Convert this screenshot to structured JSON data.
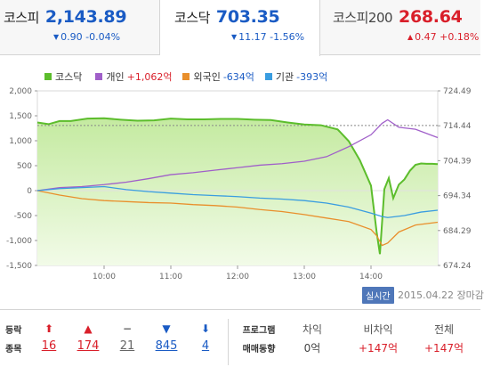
{
  "tabs": [
    {
      "name": "코스피",
      "value": "2,143.89",
      "change": "0.90 -0.04%",
      "direction": "down"
    },
    {
      "name": "코스닥",
      "value": "703.35",
      "change": "11.17 -1.56%",
      "direction": "down"
    },
    {
      "name": "코스피200",
      "value": "268.64",
      "change": "0.47 +0.18%",
      "direction": "up"
    }
  ],
  "legend": [
    {
      "label": "코스닥",
      "value": "",
      "color": "#5cbd2c"
    },
    {
      "label": "개인",
      "value": "+1,062억",
      "color": "#a05fc9",
      "direction": "up"
    },
    {
      "label": "외국인",
      "value": "-634억",
      "color": "#e98f2c",
      "direction": "down"
    },
    {
      "label": "기관",
      "value": "-393억",
      "color": "#3a9de0",
      "direction": "down"
    }
  ],
  "colors": {
    "kosdaq": "#5cbd2c",
    "individual": "#a05fc9",
    "foreign": "#e98f2c",
    "institution": "#3a9de0",
    "up": "#d91f2a",
    "down": "#1a5bc4"
  },
  "chart_data": {
    "type": "line",
    "x_ticks": [
      "10:00",
      "11:00",
      "12:00",
      "13:00",
      "14:00"
    ],
    "x_range": [
      "09:00",
      "15:00"
    ],
    "y_left_ticks": [
      "2,000",
      "1,500",
      "1,000",
      "500",
      "0",
      "-500",
      "-1,000",
      "-1,500"
    ],
    "y_left_range": [
      -1500,
      2000
    ],
    "y_right_ticks": [
      "724.49",
      "714.44",
      "704.39",
      "694.34",
      "684.29",
      "674.24"
    ],
    "y_right_range": [
      674.24,
      724.49
    ],
    "reference_line": 714.52,
    "series": [
      {
        "name": "코스닥",
        "axis": "right",
        "x": [
          "09:00",
          "09:10",
          "09:20",
          "09:30",
          "09:45",
          "10:00",
          "10:15",
          "10:30",
          "10:45",
          "11:00",
          "11:15",
          "11:30",
          "11:45",
          "12:00",
          "12:15",
          "12:30",
          "12:45",
          "13:00",
          "13:15",
          "13:30",
          "13:40",
          "13:50",
          "14:00",
          "14:05",
          "14:08",
          "14:12",
          "14:16",
          "14:20",
          "14:25",
          "14:30",
          "14:35",
          "14:40",
          "14:45",
          "14:50",
          "14:55",
          "15:00"
        ],
        "values": [
          715.4,
          714.9,
          715.8,
          715.8,
          716.5,
          716.6,
          716.2,
          715.9,
          716.0,
          716.5,
          716.3,
          716.3,
          716.4,
          716.4,
          716.2,
          716.1,
          715.4,
          714.8,
          714.6,
          713.4,
          710.0,
          704.5,
          697.2,
          684.0,
          677.5,
          696.2,
          699.4,
          693.6,
          697.5,
          699.0,
          701.5,
          703.2,
          703.6,
          703.5,
          703.5,
          703.4
        ]
      },
      {
        "name": "개인",
        "axis": "left",
        "x": [
          "09:00",
          "09:20",
          "09:40",
          "10:00",
          "10:20",
          "10:40",
          "11:00",
          "11:20",
          "11:40",
          "12:00",
          "12:20",
          "12:40",
          "13:00",
          "13:20",
          "13:40",
          "14:00",
          "14:10",
          "14:15",
          "14:25",
          "14:40",
          "15:00"
        ],
        "values": [
          0,
          60,
          80,
          120,
          170,
          240,
          320,
          360,
          410,
          460,
          510,
          540,
          590,
          680,
          880,
          1120,
          1350,
          1420,
          1270,
          1230,
          1062
        ]
      },
      {
        "name": "외국인",
        "axis": "left",
        "x": [
          "09:00",
          "09:20",
          "09:40",
          "10:00",
          "10:20",
          "10:40",
          "11:00",
          "11:20",
          "11:40",
          "12:00",
          "12:20",
          "12:40",
          "13:00",
          "13:20",
          "13:40",
          "14:00",
          "14:05",
          "14:10",
          "14:15",
          "14:25",
          "14:40",
          "15:00"
        ],
        "values": [
          0,
          -90,
          -160,
          -200,
          -220,
          -240,
          -250,
          -280,
          -300,
          -330,
          -380,
          -420,
          -480,
          -550,
          -620,
          -780,
          -900,
          -1100,
          -1050,
          -830,
          -690,
          -634
        ]
      },
      {
        "name": "기관",
        "axis": "left",
        "x": [
          "09:00",
          "09:20",
          "09:40",
          "10:00",
          "10:20",
          "10:40",
          "11:00",
          "11:20",
          "11:40",
          "12:00",
          "12:20",
          "12:40",
          "13:00",
          "13:20",
          "13:40",
          "14:00",
          "14:10",
          "14:15",
          "14:30",
          "14:45",
          "15:00"
        ],
        "values": [
          0,
          40,
          60,
          80,
          20,
          -20,
          -50,
          -80,
          -100,
          -120,
          -150,
          -170,
          -200,
          -250,
          -330,
          -450,
          -520,
          -540,
          -500,
          -430,
          -393
        ]
      }
    ]
  },
  "footer": {
    "live_label": "실시간",
    "date": "2015.04.22 장마감"
  },
  "stats": {
    "title_line1": "등락",
    "title_line2": "종목",
    "items": [
      {
        "icon": "limit-up-icon",
        "symbol": "⬆",
        "count": "16",
        "color": "red"
      },
      {
        "icon": "up-icon",
        "symbol": "▲",
        "count": "174",
        "color": "red"
      },
      {
        "icon": "flat-icon",
        "symbol": "−",
        "count": "21",
        "color": "gray"
      },
      {
        "icon": "down-icon",
        "symbol": "▼",
        "count": "845",
        "color": "blue"
      },
      {
        "icon": "limit-down-icon",
        "symbol": "⬇",
        "count": "4",
        "color": "blue"
      }
    ],
    "program_title_line1": "프로그램",
    "program_title_line2": "매매동향",
    "program": [
      {
        "label": "차익",
        "value": "0억",
        "color": "gray"
      },
      {
        "label": "비차익",
        "value": "+147억",
        "color": "red"
      },
      {
        "label": "전체",
        "value": "+147억",
        "color": "red"
      }
    ]
  }
}
